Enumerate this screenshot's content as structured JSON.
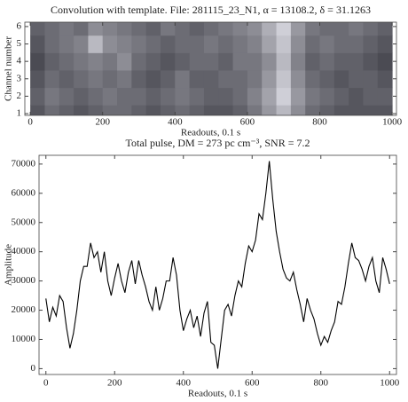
{
  "chart_data": [
    {
      "type": "heatmap",
      "title": "Convolution with template. File:  281115_23_N1, α = 13108.2, δ = 31.1263",
      "x_label": "Readouts, 0.1 s",
      "y_label": "Channel number",
      "x": [
        20,
        60,
        100,
        140,
        180,
        220,
        260,
        300,
        340,
        380,
        420,
        460,
        500,
        540,
        580,
        620,
        660,
        700,
        740,
        780,
        820,
        860,
        900,
        940,
        980
      ],
      "y": [
        1,
        2,
        3,
        4,
        5,
        6
      ],
      "values": [
        [
          30,
          40,
          35,
          30,
          35,
          40,
          40,
          35,
          30,
          35,
          40,
          35,
          30,
          30,
          35,
          45,
          60,
          75,
          55,
          40,
          35,
          30,
          30,
          30,
          30
        ],
        [
          35,
          45,
          40,
          35,
          40,
          45,
          40,
          40,
          35,
          40,
          45,
          40,
          35,
          35,
          40,
          50,
          65,
          85,
          60,
          45,
          40,
          35,
          30,
          35,
          35
        ],
        [
          30,
          40,
          35,
          40,
          45,
          40,
          45,
          35,
          30,
          35,
          45,
          35,
          35,
          40,
          40,
          45,
          60,
          80,
          55,
          40,
          35,
          30,
          35,
          35,
          30
        ],
        [
          25,
          35,
          40,
          45,
          50,
          45,
          55,
          40,
          35,
          30,
          35,
          40,
          40,
          35,
          45,
          45,
          55,
          75,
          50,
          35,
          40,
          35,
          35,
          30,
          25
        ],
        [
          30,
          40,
          45,
          50,
          75,
          55,
          50,
          45,
          40,
          35,
          40,
          40,
          45,
          40,
          45,
          50,
          65,
          80,
          55,
          40,
          45,
          40,
          40,
          35,
          30
        ],
        [
          35,
          40,
          45,
          40,
          55,
          50,
          45,
          40,
          35,
          45,
          40,
          35,
          40,
          45,
          50,
          55,
          70,
          85,
          60,
          45,
          40,
          40,
          45,
          40,
          35
        ]
      ],
      "xlim": [
        -15,
        1012
      ],
      "ylim": [
        0.9,
        6.25
      ],
      "xticks": [
        0,
        200,
        400,
        600,
        800,
        1000
      ],
      "yticks": [
        1,
        2,
        3,
        4,
        5,
        6
      ]
    },
    {
      "type": "line",
      "title": "Total pulse, DM = 273 pc cm⁻³, SNR = 7.2",
      "x_label": "Readouts, 0.1 s",
      "y_label": "Amplitude",
      "x": [
        0,
        10,
        20,
        30,
        40,
        50,
        60,
        70,
        80,
        90,
        100,
        110,
        120,
        130,
        140,
        150,
        160,
        170,
        180,
        190,
        200,
        210,
        220,
        230,
        240,
        250,
        260,
        270,
        280,
        290,
        300,
        310,
        320,
        330,
        340,
        350,
        360,
        370,
        380,
        390,
        400,
        410,
        420,
        430,
        440,
        450,
        460,
        470,
        480,
        490,
        500,
        510,
        520,
        530,
        540,
        550,
        560,
        570,
        580,
        590,
        600,
        610,
        620,
        630,
        640,
        650,
        660,
        670,
        680,
        690,
        700,
        710,
        720,
        730,
        740,
        750,
        760,
        770,
        780,
        790,
        800,
        810,
        820,
        830,
        840,
        850,
        860,
        870,
        880,
        890,
        900,
        910,
        920,
        930,
        940,
        950,
        960,
        970,
        980,
        990,
        1000
      ],
      "series": [
        {
          "name": "Total pulse",
          "color": "#000000",
          "values": [
            24000,
            16000,
            21000,
            18000,
            25000,
            23000,
            14000,
            7000,
            12000,
            20000,
            30000,
            35000,
            35000,
            43000,
            38000,
            40000,
            33000,
            40000,
            30000,
            25000,
            31000,
            36000,
            30000,
            26000,
            33000,
            37000,
            29000,
            37000,
            32000,
            28000,
            23000,
            20000,
            28000,
            20000,
            24000,
            30000,
            30000,
            38000,
            32000,
            20000,
            13000,
            17000,
            20000,
            14000,
            18000,
            11000,
            19000,
            23000,
            9000,
            8000,
            0,
            10000,
            20000,
            22000,
            18000,
            25000,
            30000,
            28000,
            36000,
            42000,
            40000,
            44000,
            53000,
            51000,
            60000,
            71000,
            58000,
            47000,
            40000,
            34000,
            31000,
            30000,
            33000,
            27000,
            22000,
            16000,
            24000,
            20000,
            17000,
            12000,
            8000,
            11000,
            9000,
            13000,
            16000,
            23000,
            22000,
            28000,
            36000,
            43000,
            38000,
            37000,
            34000,
            30000,
            35000,
            38000,
            30000,
            26000,
            38000,
            34000,
            29000
          ]
        }
      ],
      "xlim": [
        -20,
        1020
      ],
      "ylim": [
        -2000,
        73000
      ],
      "xticks": [
        0,
        200,
        400,
        600,
        800,
        1000
      ],
      "yticks": [
        0,
        10000,
        20000,
        30000,
        40000,
        50000,
        60000,
        70000
      ]
    }
  ]
}
